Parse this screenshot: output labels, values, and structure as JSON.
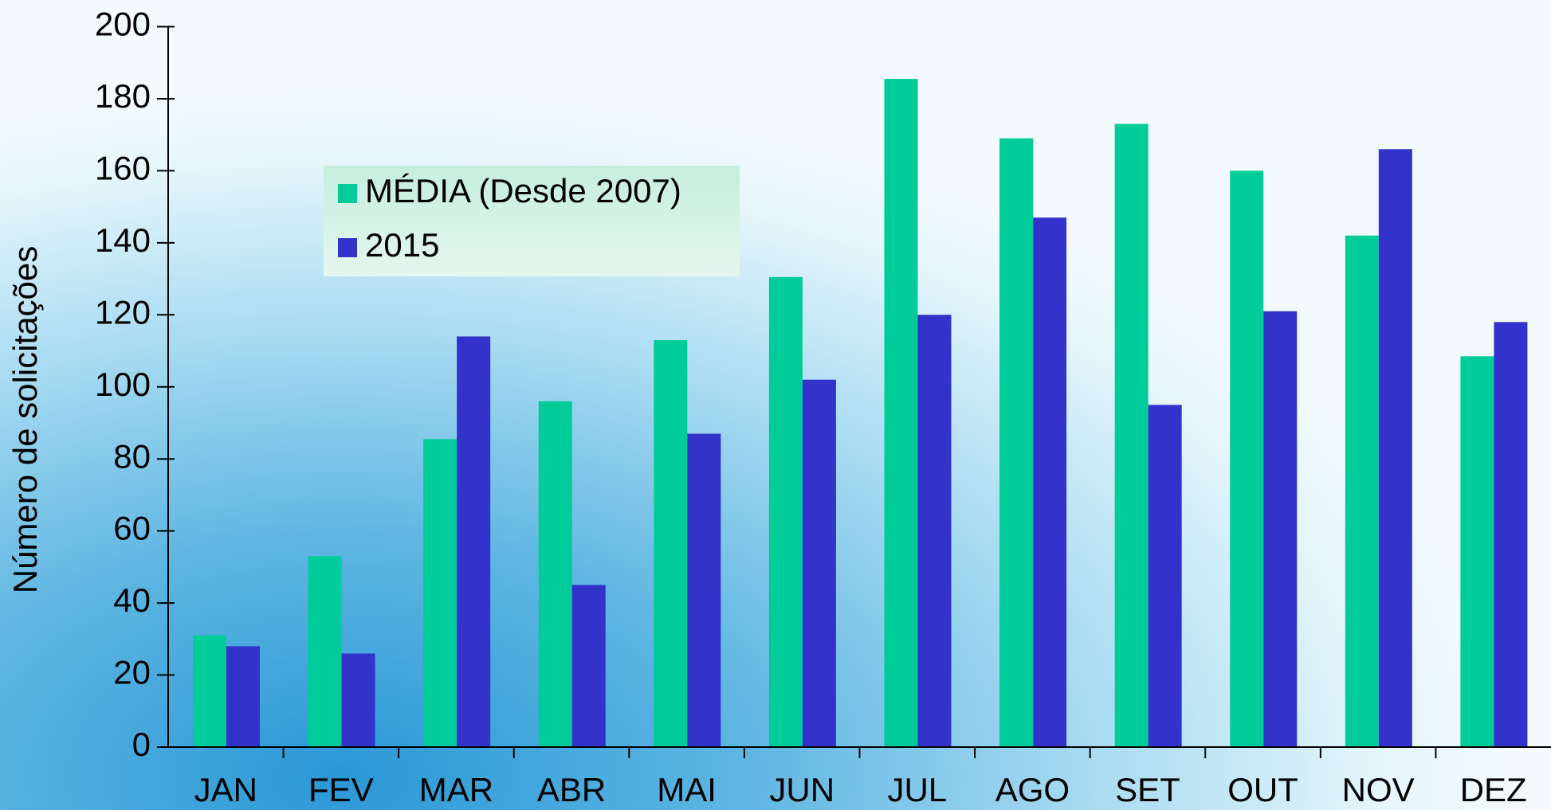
{
  "chart_data": {
    "type": "bar",
    "y_label": "Número de solicitações",
    "categories": [
      "JAN",
      "FEV",
      "MAR",
      "ABR",
      "MAI",
      "JUN",
      "JUL",
      "AGO",
      "SET",
      "OUT",
      "NOV",
      "DEZ"
    ],
    "series": [
      {
        "name": "MÉDIA (Desde 2007)",
        "color": "#00cc99",
        "values": [
          31,
          53,
          85.5,
          96,
          113,
          130.5,
          185.5,
          169,
          173,
          160,
          142,
          108.5
        ]
      },
      {
        "name": "2015",
        "color": "#3333cc",
        "values": [
          28,
          26,
          114,
          45,
          87,
          102,
          120,
          147,
          95,
          121,
          166,
          118
        ]
      }
    ],
    "ylim": [
      0,
      200
    ],
    "yticks": [
      0,
      20,
      40,
      60,
      80,
      100,
      120,
      140,
      160,
      180,
      200
    ]
  }
}
